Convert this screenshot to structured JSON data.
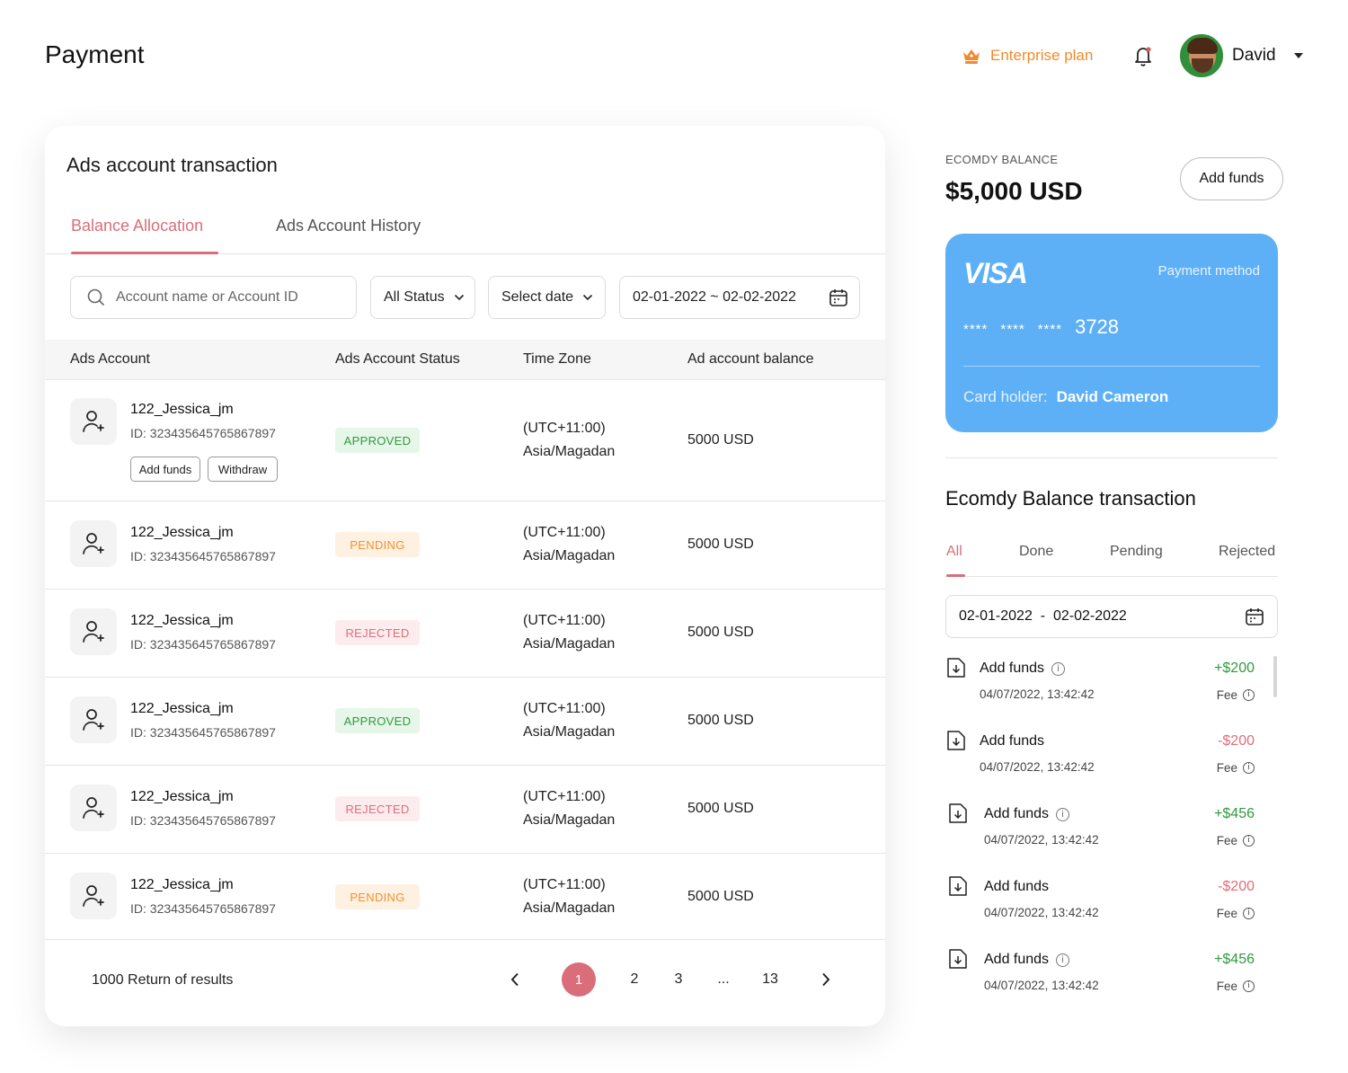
{
  "header": {
    "title": "Payment",
    "plan_label": "Enterprise plan",
    "user_name": "David"
  },
  "main": {
    "card_title": "Ads account transaction",
    "tabs": [
      "Balance Allocation",
      "Ads Account History"
    ],
    "search_placeholder": "Account name or Account ID",
    "status_filter": "All Status",
    "date_filter": "Select date",
    "date_range": "02-01-2022 ~ 02-02-2022",
    "columns": [
      "Ads Account",
      "Ads Account Status",
      "Time Zone",
      "Ad account balance"
    ],
    "row_actions": [
      "Add funds",
      "Withdraw"
    ],
    "rows": [
      {
        "name": "122_Jessica_jm",
        "id": "ID: 323435645765867897",
        "status": "APPROVED",
        "tz1": "(UTC+11:00)",
        "tz2": "Asia/Magadan",
        "balance": "5000 USD"
      },
      {
        "name": "122_Jessica_jm",
        "id": "ID: 323435645765867897",
        "status": "PENDING",
        "tz1": "(UTC+11:00)",
        "tz2": "Asia/Magadan",
        "balance": "5000 USD"
      },
      {
        "name": "122_Jessica_jm",
        "id": "ID: 323435645765867897",
        "status": "REJECTED",
        "tz1": "(UTC+11:00)",
        "tz2": "Asia/Magadan",
        "balance": "5000 USD"
      },
      {
        "name": "122_Jessica_jm",
        "id": "ID: 323435645765867897",
        "status": "APPROVED",
        "tz1": "(UTC+11:00)",
        "tz2": "Asia/Magadan",
        "balance": "5000 USD"
      },
      {
        "name": "122_Jessica_jm",
        "id": "ID: 323435645765867897",
        "status": "REJECTED",
        "tz1": "(UTC+11:00)",
        "tz2": "Asia/Magadan",
        "balance": "5000 USD"
      },
      {
        "name": "122_Jessica_jm",
        "id": "ID: 323435645765867897",
        "status": "PENDING",
        "tz1": "(UTC+11:00)",
        "tz2": "Asia/Magadan",
        "balance": "5000 USD"
      }
    ],
    "results_text": "1000 Return of results",
    "pagination": {
      "pages": [
        "1",
        "2",
        "3",
        "...",
        "13"
      ],
      "current": "1"
    }
  },
  "balance": {
    "label": "ECOMDY BALANCE",
    "amount": "$5,000 USD",
    "add_funds_label": "Add funds"
  },
  "card": {
    "brand": "VISA",
    "method_label": "Payment method",
    "masked": [
      "****",
      "****",
      "****"
    ],
    "last4": "3728",
    "holder_label": "Card holder:",
    "holder_name": "David Cameron"
  },
  "transactions": {
    "title": "Ecomdy Balance transaction",
    "tabs": [
      "All",
      "Done",
      "Pending",
      "Rejected"
    ],
    "date_from": "02-01-2022",
    "date_sep": "-",
    "date_to": "02-02-2022",
    "fee_label": "Fee",
    "items": [
      {
        "name": "Add funds",
        "date": "04/07/2022, 13:42:42",
        "amount": "+$200",
        "sign": "pos",
        "info": true
      },
      {
        "name": "Add funds",
        "date": "04/07/2022, 13:42:42",
        "amount": "-$200",
        "sign": "neg",
        "info": false
      },
      {
        "name": "Add funds",
        "date": "04/07/2022, 13:42:42",
        "amount": "+$456",
        "sign": "pos",
        "info": true
      },
      {
        "name": "Add funds",
        "date": "04/07/2022, 13:42:42",
        "amount": "-$200",
        "sign": "neg",
        "info": false
      },
      {
        "name": "Add funds",
        "date": "04/07/2022, 13:42:42",
        "amount": "+$456",
        "sign": "pos",
        "info": true
      }
    ]
  },
  "colors": {
    "accent": "#d96e7a",
    "plan": "#f08a2c",
    "card": "#5eb0f6",
    "positive": "#2e9b3e",
    "negative": "#e06d7a"
  }
}
